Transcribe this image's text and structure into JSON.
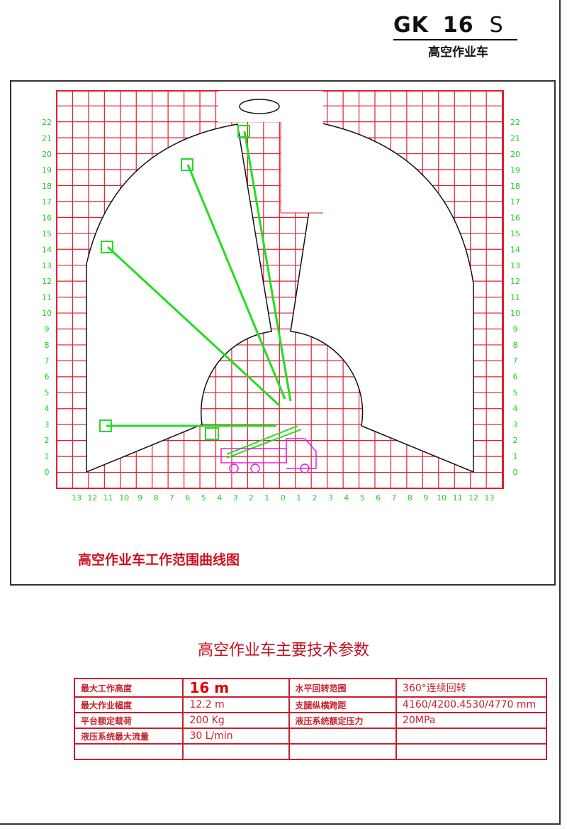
{
  "header": {
    "model_prefix": "GK",
    "model_number": "16",
    "model_suffix": "S",
    "subtitle": "高空作业车"
  },
  "diagram": {
    "caption": "高空作业车工作范围曲线图",
    "y_axis_labels": [
      "0",
      "1",
      "2",
      "3",
      "4",
      "5",
      "6",
      "7",
      "8",
      "9",
      "10",
      "11",
      "12",
      "13",
      "14",
      "15",
      "16",
      "17",
      "18",
      "19",
      "20",
      "21",
      "22"
    ],
    "x_axis_labels": [
      "13",
      "12",
      "11",
      "10",
      "9",
      "8",
      "7",
      "6",
      "5",
      "4",
      "3",
      "2",
      "1",
      "0",
      "1",
      "2",
      "3",
      "4",
      "5",
      "6",
      "7",
      "8",
      "9",
      "10",
      "11",
      "12",
      "13"
    ],
    "colors": {
      "grid": "#e0202c",
      "boom": "#22dd22",
      "truck": "#e020e0",
      "envelope": "#111111",
      "labels": "#22cc22"
    }
  },
  "specs": {
    "title": "高空作业车主要技术参数",
    "rows": [
      {
        "label1": "最大工作高度",
        "value1": "16 m",
        "label2": "水平回转范围",
        "value2": "360°连续回转"
      },
      {
        "label1": "最大作业幅度",
        "value1": "12.2 m",
        "label2": "支腿纵横跨距",
        "value2": "4160/4200.4530/4770 mm"
      },
      {
        "label1": "平台额定载荷",
        "value1": "200 Kg",
        "label2": "液压系统额定压力",
        "value2": "20MPa"
      },
      {
        "label1": "液压系统最大流量",
        "value1": "30 L/min",
        "label2": "",
        "value2": ""
      },
      {
        "label1": "",
        "value1": "",
        "label2": "",
        "value2": ""
      }
    ]
  }
}
